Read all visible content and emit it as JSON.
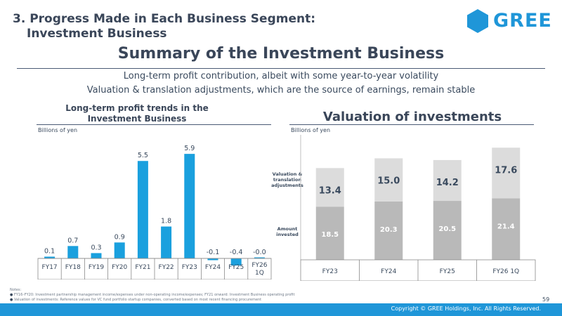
{
  "header": {
    "section_title_line1": "3. Progress Made in Each Business Segment:",
    "section_title_line2": "Investment Business",
    "logo_text": "GREE",
    "brand_color": "#1f96d8"
  },
  "main": {
    "heading": "Summary of the Investment Business",
    "subline_1": "Long-term profit contribution, albeit with some year-to-year volatility",
    "subline_2": "Valuation & translation adjustments, which are the source of earnings, remain stable"
  },
  "left_panel": {
    "title_line1": "Long-term profit trends in the",
    "title_line2": "Investment Business",
    "unit": "Billions of yen"
  },
  "right_panel": {
    "title": "Valuation of investments",
    "unit": "Billions of yen",
    "label_adjustments_line1": "Valuation &",
    "label_adjustments_line2": "translation",
    "label_adjustments_line3": "adjustments",
    "label_invested_line1": "Amount",
    "label_invested_line2": "invested"
  },
  "chart_data": [
    {
      "type": "bar",
      "title": "Long-term profit trends in the Investment Business",
      "ylabel": "Billions of yen",
      "categories": [
        "FY17",
        "FY18",
        "FY19",
        "FY20",
        "FY21",
        "FY22",
        "FY23",
        "FY24",
        "FY25",
        "FY26 1Q"
      ],
      "values": [
        0.1,
        0.7,
        0.3,
        0.9,
        5.5,
        1.8,
        5.9,
        -0.1,
        -0.4,
        -0.0
      ],
      "value_labels": [
        "0.1",
        "0.7",
        "0.3",
        "0.9",
        "5.5",
        "1.8",
        "5.9",
        "-0.1",
        "-0.4",
        "-0.0"
      ],
      "ylim": [
        -0.5,
        6.5
      ],
      "color": "#1aa0de"
    },
    {
      "type": "bar",
      "stacked": true,
      "title": "Valuation of investments",
      "ylabel": "Billions of yen",
      "categories": [
        "FY23",
        "FY24",
        "FY25",
        "FY26 1Q"
      ],
      "series": [
        {
          "name": "Amount invested",
          "values": [
            18.5,
            20.3,
            20.5,
            21.4
          ],
          "labels": [
            "18.5",
            "20.3",
            "20.5",
            "21.4"
          ],
          "color": "#b9b9b9"
        },
        {
          "name": "Valuation & translation adjustments",
          "values": [
            13.4,
            15.0,
            14.2,
            17.6
          ],
          "labels": [
            "13.4",
            "15.0",
            "14.2",
            "17.6"
          ],
          "color": "#dcdcdc"
        }
      ],
      "ylim": [
        0,
        42
      ]
    }
  ],
  "footer": {
    "notes_heading": "Notes:",
    "notes": [
      "FY16–FY20: Investment partnership management income/expenses under non-operating income/expenses; FY21 onward: Investment Business operating profit",
      "Valuation of investments: Reference values for VC fund portfolio startup companies, converted based on most recent financing procurement"
    ],
    "page_number": "59",
    "copyright": "Copyright © GREE Holdings, Inc. All Rights Reserved."
  }
}
